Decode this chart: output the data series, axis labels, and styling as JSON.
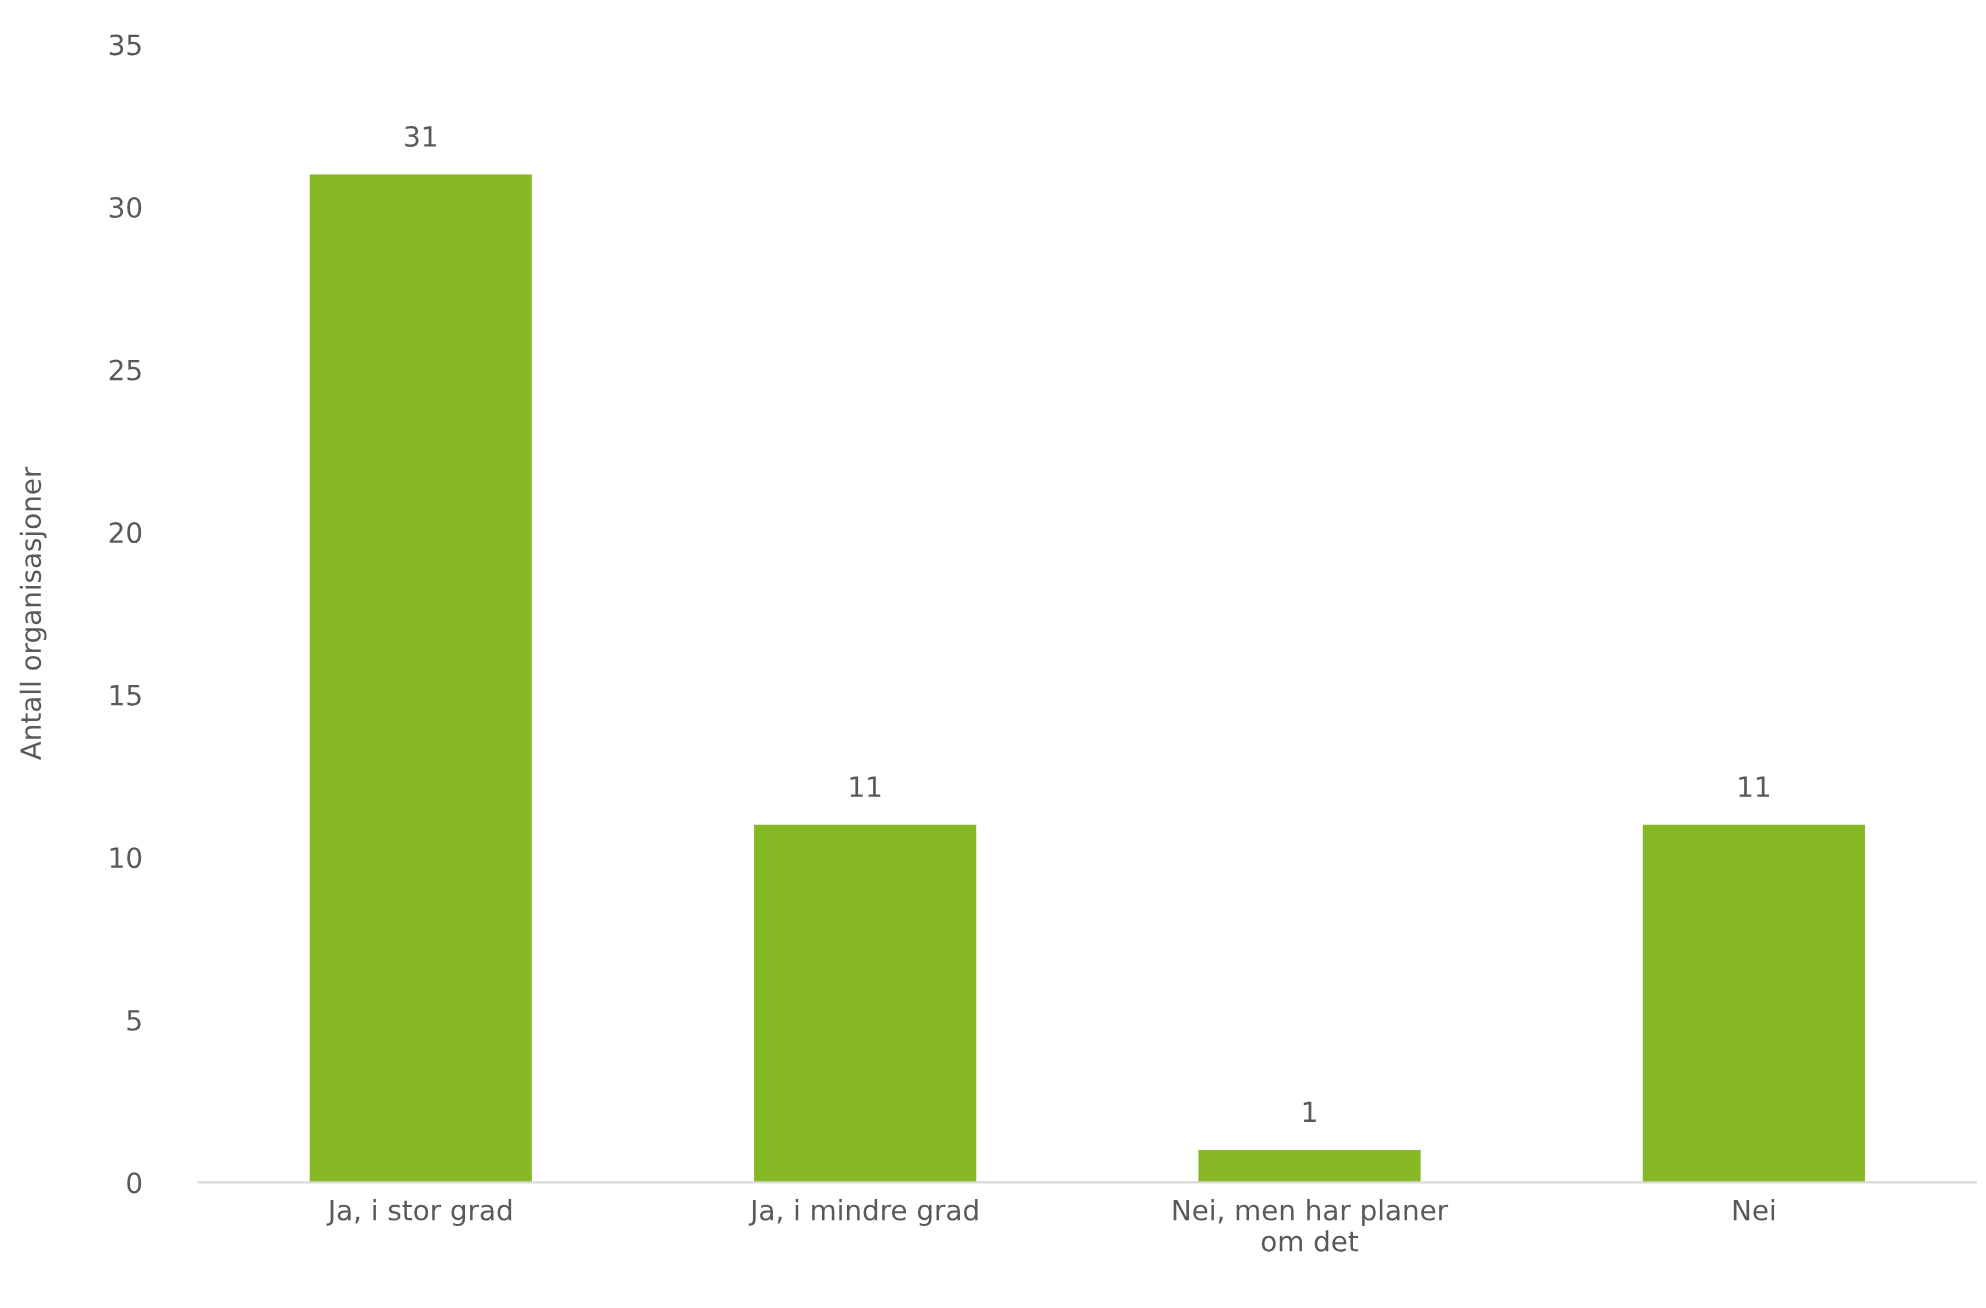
{
  "chart_data": {
    "type": "bar",
    "ylabel": "Antall organisasjoner",
    "categories": [
      "Ja, i stor grad",
      "Ja, i mindre grad",
      "Nei, men har planer\nom det",
      "Nei"
    ],
    "values": [
      31,
      11,
      1,
      11
    ],
    "color": "#86b825",
    "ylim": [
      0,
      35
    ],
    "yticks": [
      0,
      5,
      10,
      15,
      20,
      25,
      30,
      35
    ],
    "grid": false,
    "data_labels": true
  }
}
